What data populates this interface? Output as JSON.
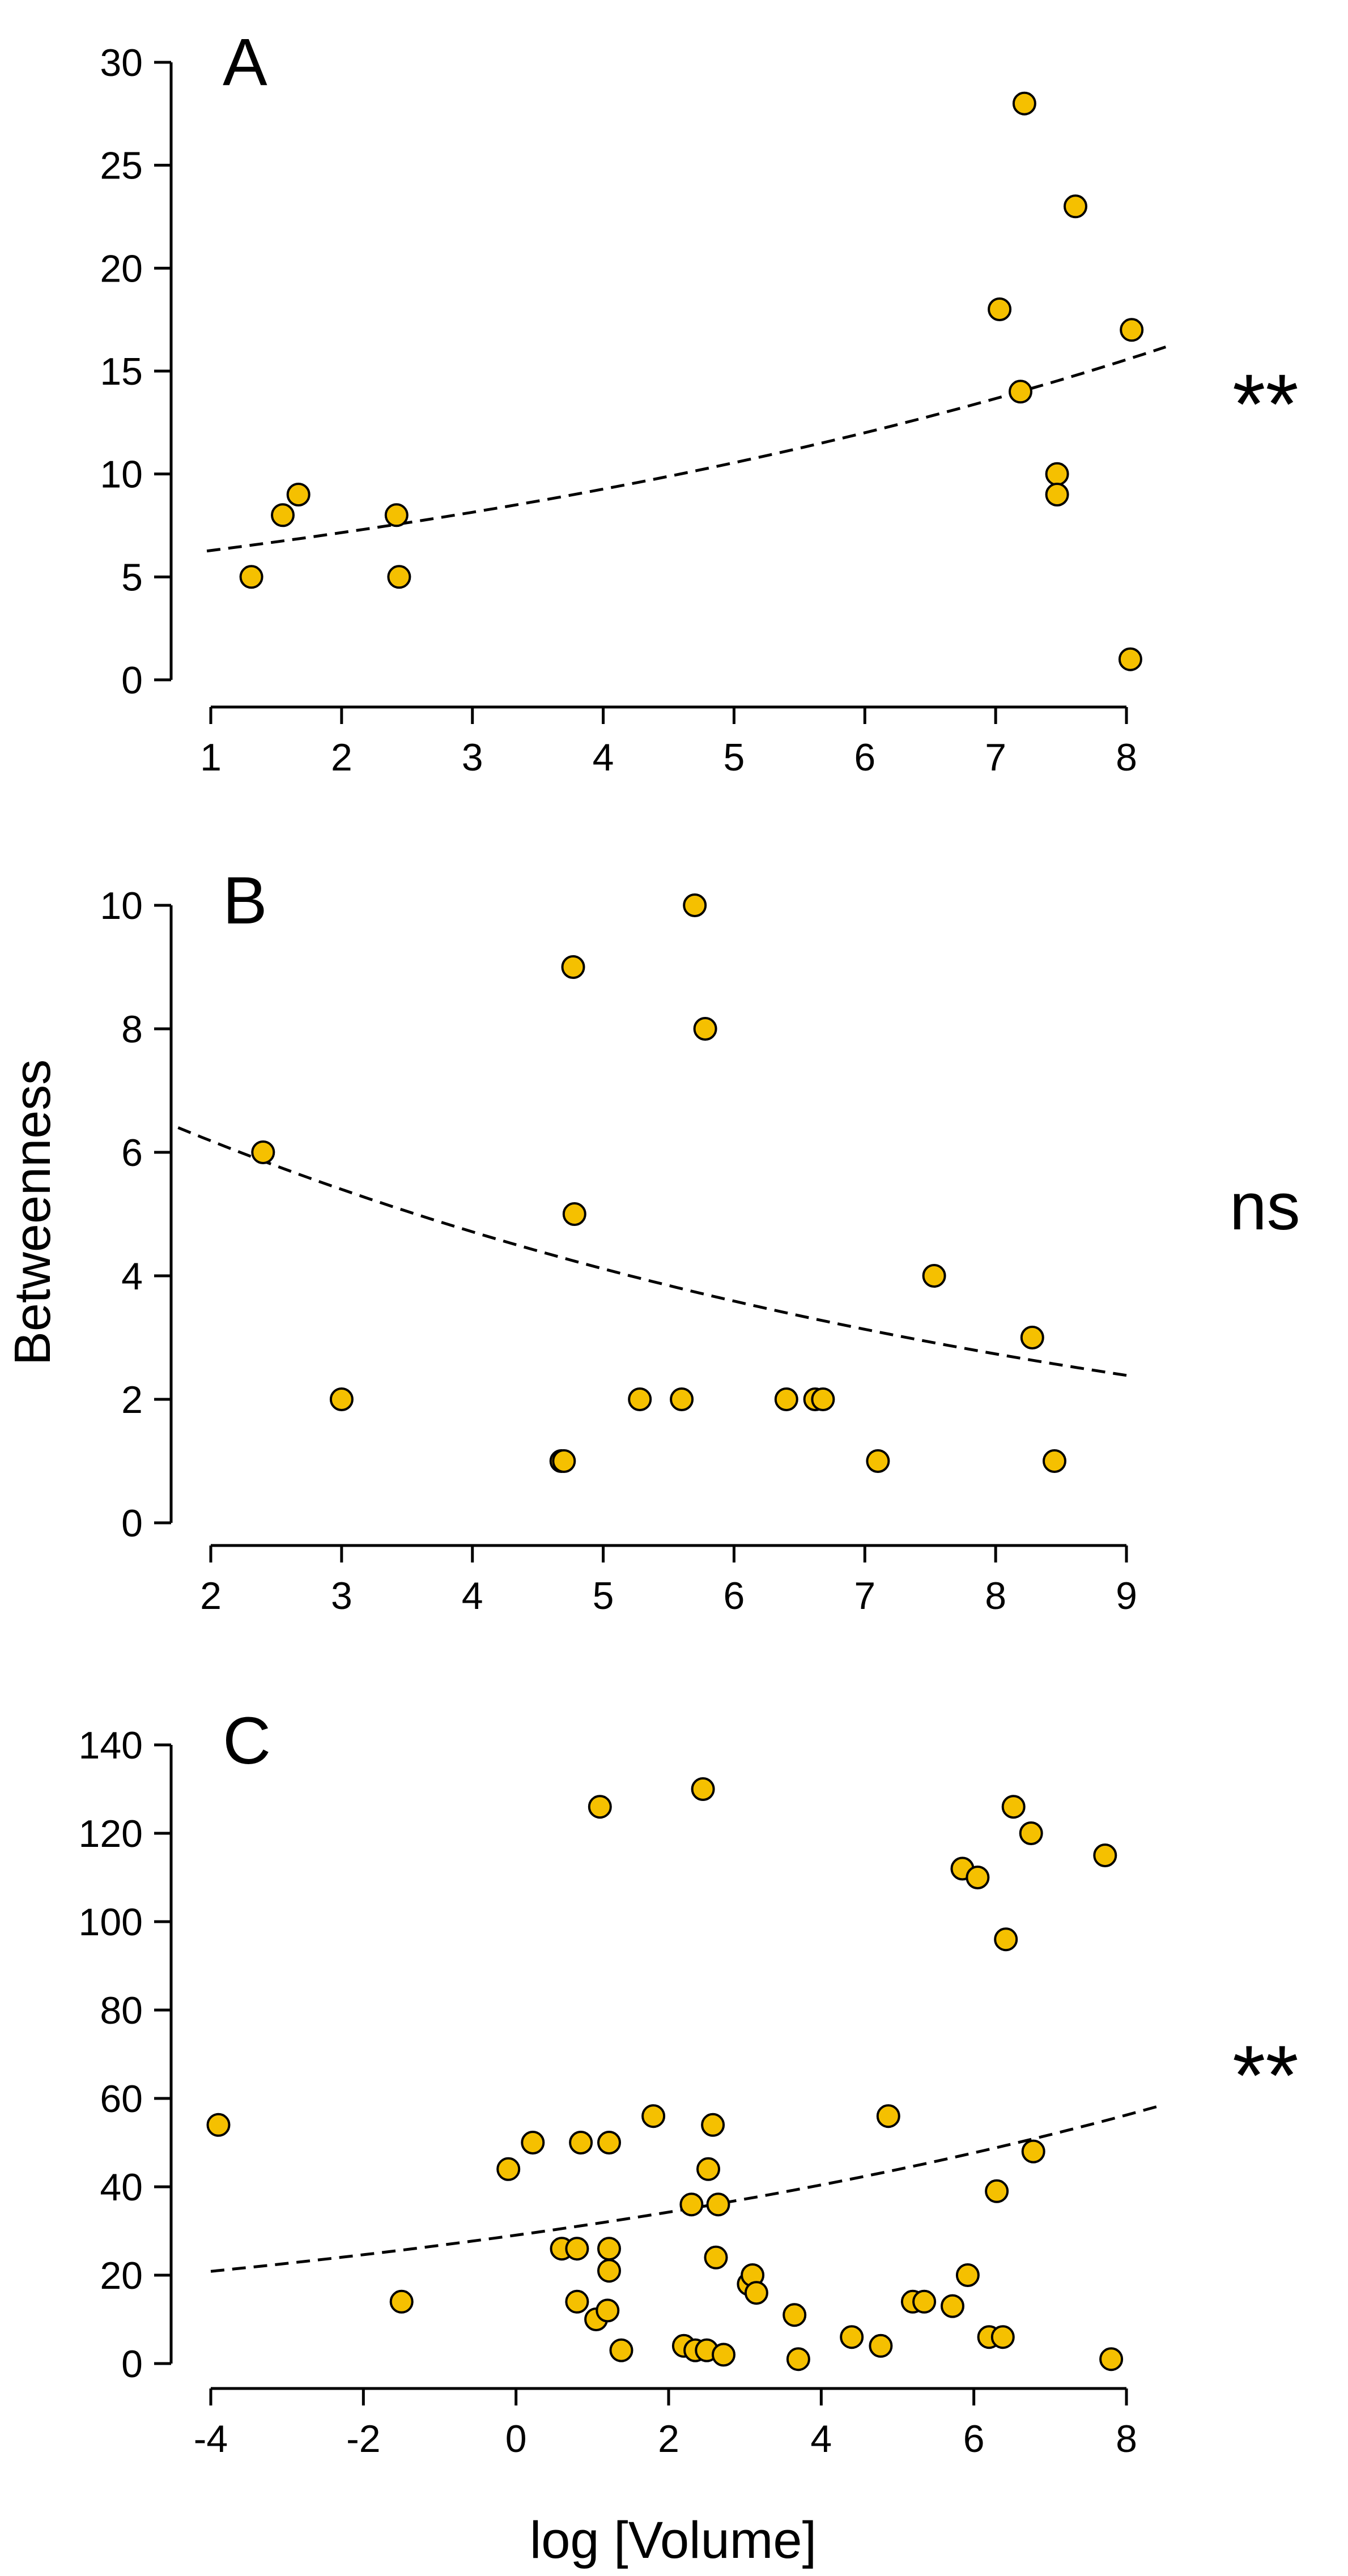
{
  "figure": {
    "ylabel": "Betweenness",
    "xlabel": "log [Volume]"
  },
  "chart_data": [
    {
      "type": "scatter",
      "panel_label": "A",
      "significance": "**",
      "xlim": [
        1,
        8
      ],
      "ylim": [
        0,
        30
      ],
      "xticks": [
        "1",
        "2",
        "3",
        "4",
        "5",
        "6",
        "7",
        "8"
      ],
      "yticks": [
        "0",
        "5",
        "10",
        "15",
        "20",
        "25",
        "30"
      ],
      "points": [
        [
          1.31,
          5
        ],
        [
          1.55,
          8
        ],
        [
          1.67,
          9
        ],
        [
          2.42,
          8
        ],
        [
          2.44,
          5
        ],
        [
          7.03,
          18
        ],
        [
          7.19,
          14
        ],
        [
          7.22,
          28
        ],
        [
          7.47,
          10
        ],
        [
          7.47,
          9
        ],
        [
          7.61,
          23
        ],
        [
          8.04,
          17
        ],
        [
          8.03,
          1
        ]
      ],
      "fit": {
        "style": "dashed",
        "model": "exponential",
        "a": 5.52,
        "b": 0.1295,
        "x_range": [
          0.97,
          8.3
        ]
      }
    },
    {
      "type": "scatter",
      "panel_label": "B",
      "significance": "ns",
      "xlim": [
        2,
        9
      ],
      "ylim": [
        0,
        10
      ],
      "xticks": [
        "2",
        "3",
        "4",
        "5",
        "6",
        "7",
        "8",
        "9"
      ],
      "yticks": [
        "0",
        "2",
        "4",
        "6",
        "8",
        "10"
      ],
      "points": [
        [
          2.4,
          6
        ],
        [
          3.0,
          2
        ],
        [
          4.68,
          1
        ],
        [
          4.7,
          1
        ],
        [
          4.77,
          9
        ],
        [
          4.78,
          5
        ],
        [
          5.28,
          2
        ],
        [
          5.6,
          2
        ],
        [
          5.7,
          10
        ],
        [
          5.78,
          8
        ],
        [
          6.4,
          2
        ],
        [
          6.62,
          2
        ],
        [
          6.68,
          2
        ],
        [
          7.1,
          1
        ],
        [
          7.53,
          4
        ],
        [
          8.28,
          3
        ],
        [
          8.45,
          1
        ]
      ],
      "fit": {
        "style": "dashed",
        "model": "exponential",
        "a": 8.12,
        "b": -0.136,
        "x_range": [
          1.75,
          9.0
        ]
      }
    },
    {
      "type": "scatter",
      "panel_label": "C",
      "significance": "**",
      "xlim": [
        -4,
        8
      ],
      "ylim": [
        0,
        140
      ],
      "xticks": [
        "-4",
        "-2",
        "0",
        "2",
        "4",
        "6",
        "8"
      ],
      "yticks": [
        "0",
        "20",
        "40",
        "60",
        "80",
        "100",
        "120",
        "140"
      ],
      "points": [
        [
          -3.9,
          54
        ],
        [
          -1.5,
          14
        ],
        [
          -0.1,
          44
        ],
        [
          0.22,
          50
        ],
        [
          0.6,
          26
        ],
        [
          0.8,
          26
        ],
        [
          0.8,
          14
        ],
        [
          0.85,
          50
        ],
        [
          1.05,
          10
        ],
        [
          1.1,
          126
        ],
        [
          1.2,
          12
        ],
        [
          1.22,
          50
        ],
        [
          1.22,
          26
        ],
        [
          1.22,
          21
        ],
        [
          1.38,
          3
        ],
        [
          1.8,
          56
        ],
        [
          2.2,
          4
        ],
        [
          2.3,
          36
        ],
        [
          2.35,
          3
        ],
        [
          2.45,
          130
        ],
        [
          2.5,
          3
        ],
        [
          2.52,
          44
        ],
        [
          2.58,
          54
        ],
        [
          2.62,
          24
        ],
        [
          2.65,
          36
        ],
        [
          2.72,
          2
        ],
        [
          3.05,
          18
        ],
        [
          3.1,
          20
        ],
        [
          3.15,
          16
        ],
        [
          3.65,
          11
        ],
        [
          3.7,
          1
        ],
        [
          4.4,
          6
        ],
        [
          4.78,
          4
        ],
        [
          4.88,
          56
        ],
        [
          5.2,
          14
        ],
        [
          5.35,
          14
        ],
        [
          5.72,
          13
        ],
        [
          5.85,
          112
        ],
        [
          5.92,
          20
        ],
        [
          6.05,
          110
        ],
        [
          6.2,
          6
        ],
        [
          6.3,
          39
        ],
        [
          6.38,
          6
        ],
        [
          6.42,
          96
        ],
        [
          6.52,
          126
        ],
        [
          6.75,
          120
        ],
        [
          6.78,
          48
        ],
        [
          7.72,
          115
        ],
        [
          7.8,
          1
        ]
      ],
      "fit": {
        "style": "dashed",
        "model": "exponential",
        "a": 29.05,
        "b": 0.0826,
        "x_range": [
          -4.0,
          8.45
        ]
      }
    }
  ]
}
